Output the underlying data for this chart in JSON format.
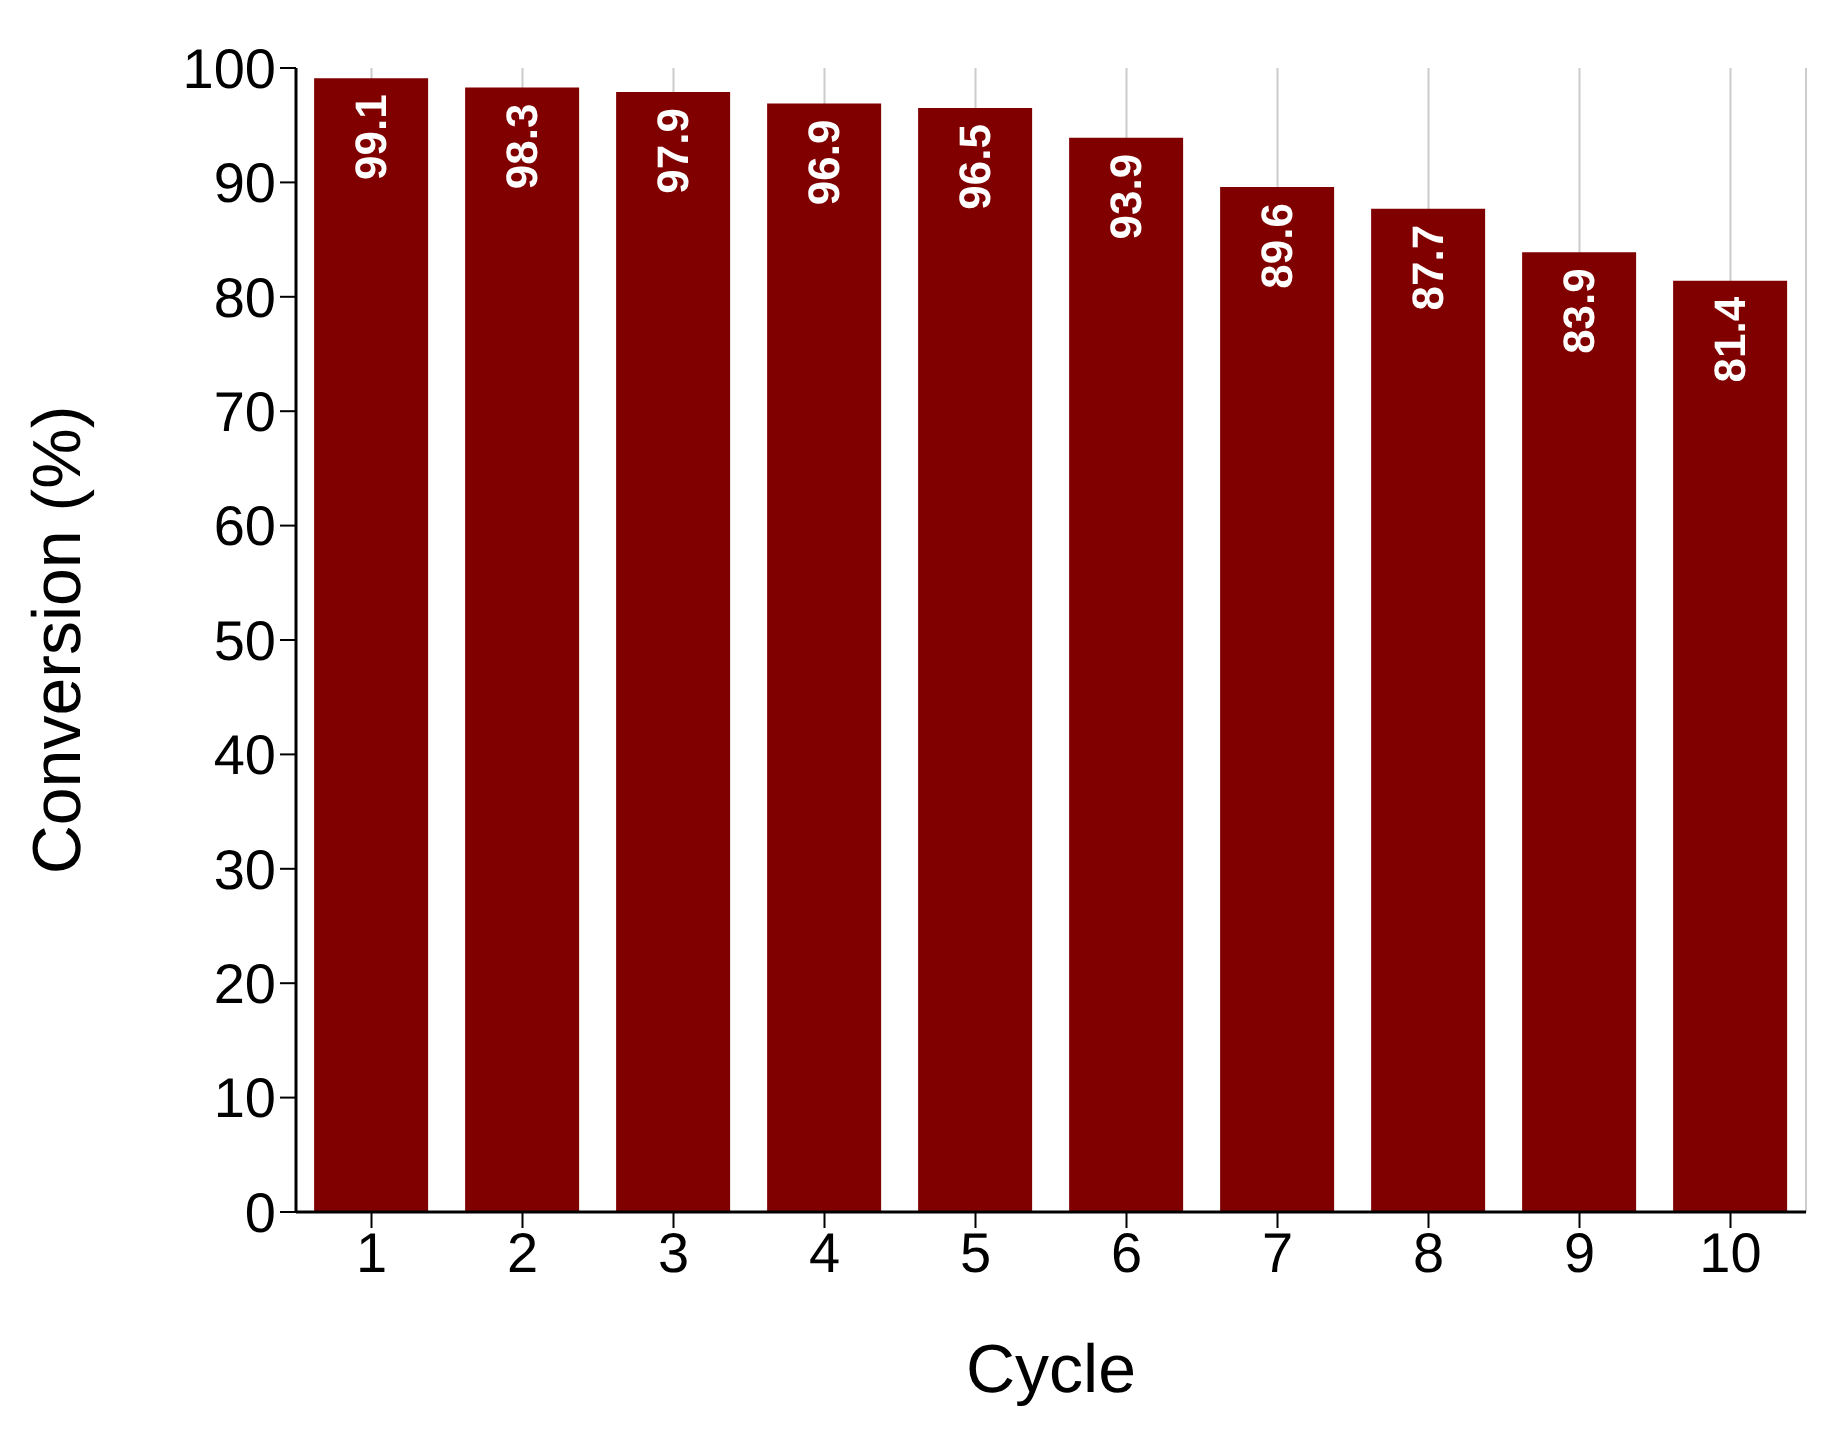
{
  "chart_data": {
    "type": "bar",
    "xlabel": "Cycle",
    "ylabel": "Conversion (%)",
    "categories": [
      "1",
      "2",
      "3",
      "4",
      "5",
      "6",
      "7",
      "8",
      "9",
      "10"
    ],
    "values": [
      99.1,
      98.3,
      97.9,
      96.9,
      96.5,
      93.9,
      89.6,
      87.7,
      83.9,
      81.4
    ],
    "color": "#800000",
    "ylim": [
      0,
      100
    ],
    "yticks": [
      0,
      10,
      20,
      30,
      40,
      50,
      60,
      70,
      80,
      90,
      100
    ],
    "grid": "x",
    "data_labels": true
  }
}
